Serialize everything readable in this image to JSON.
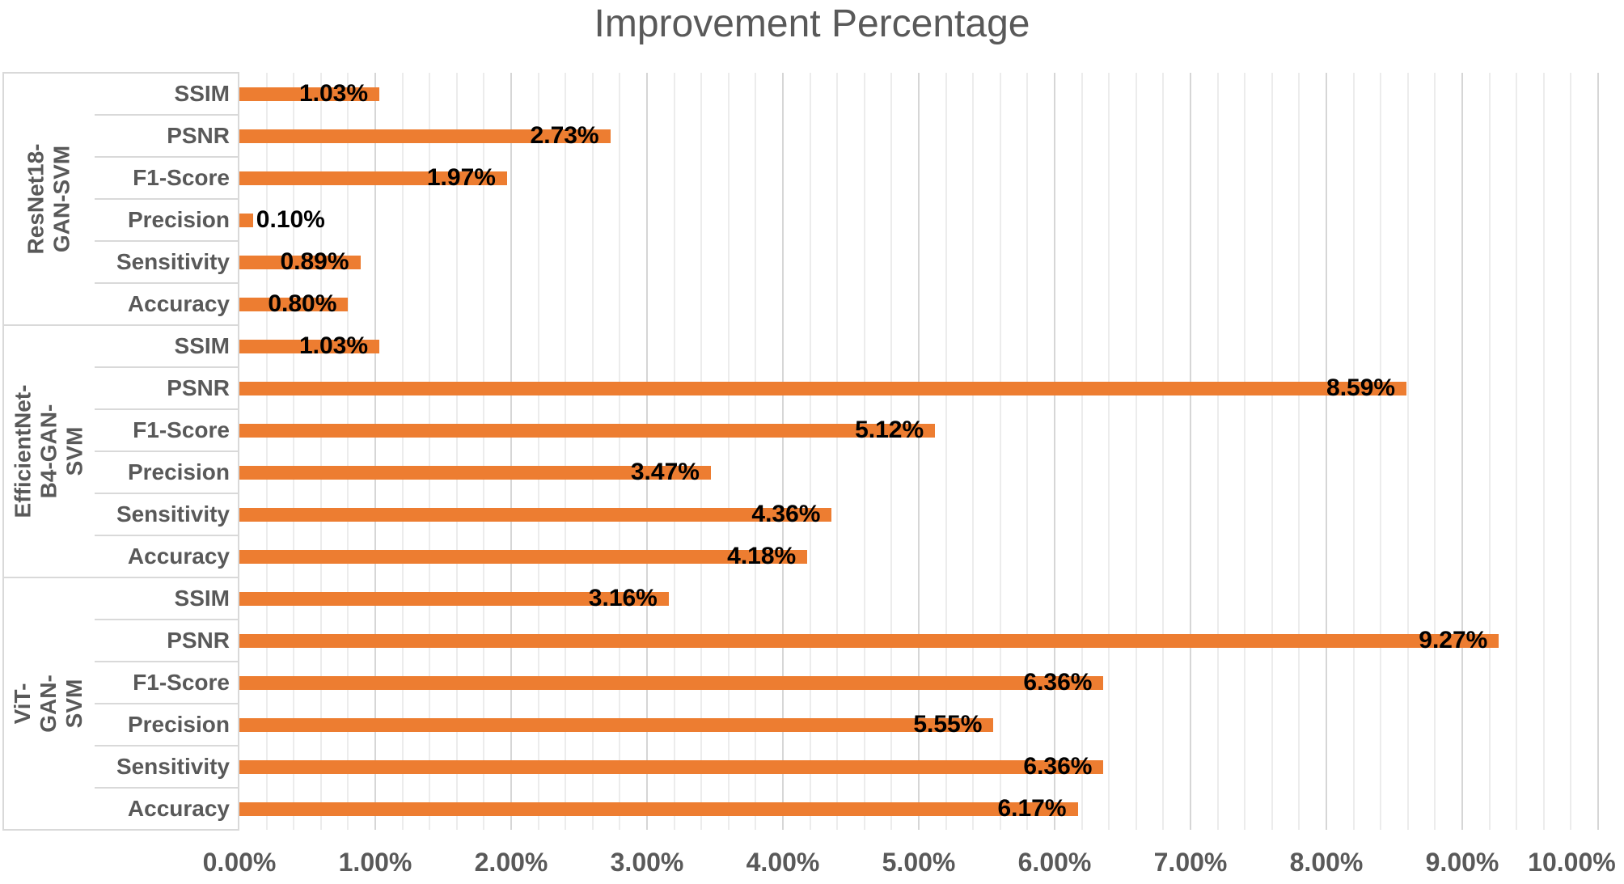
{
  "title": "Improvement Percentage",
  "colors": {
    "bar": "#ED7D31",
    "title_text": "#595959",
    "axis_text": "#595959",
    "category_text": "#595959",
    "value_label_text": "#000000",
    "grid_major": "#D6D6D6",
    "grid_minor": "#ECECEC",
    "label_area_border": "#D9D9D9"
  },
  "chart_data": {
    "type": "bar",
    "orientation": "horizontal",
    "title": "Improvement Percentage",
    "xlabel": "",
    "ylabel": "",
    "x_axis": {
      "min": 0,
      "max": 10,
      "major_step": 1,
      "minor_step": 0.2,
      "unit": "%",
      "tick_labels": [
        "0.00%",
        "1.00%",
        "2.00%",
        "3.00%",
        "4.00%",
        "5.00%",
        "6.00%",
        "7.00%",
        "8.00%",
        "9.00%",
        "10.00%"
      ],
      "grid": "major-and-minor"
    },
    "legend": "none",
    "groups": [
      {
        "name": "ResNet18-GAN-SVM",
        "display_lines": [
          "ResNet18-GAN-SVM"
        ],
        "metrics": [
          {
            "label": "SSIM",
            "value": 1.03,
            "display": "1.03%"
          },
          {
            "label": "PSNR",
            "value": 2.73,
            "display": "2.73%"
          },
          {
            "label": "F1-Score",
            "value": 1.97,
            "display": "1.97%"
          },
          {
            "label": "Precision",
            "value": 0.1,
            "display": "0.10%"
          },
          {
            "label": "Sensitivity",
            "value": 0.89,
            "display": "0.89%"
          },
          {
            "label": "Accuracy",
            "value": 0.8,
            "display": "0.80%"
          }
        ]
      },
      {
        "name": "EfficientNet-B4-GAN-SVM",
        "display_lines": [
          "EfficientNet-B4-GAN-",
          "SVM"
        ],
        "metrics": [
          {
            "label": "SSIM",
            "value": 1.03,
            "display": "1.03%"
          },
          {
            "label": "PSNR",
            "value": 8.59,
            "display": "8.59%"
          },
          {
            "label": "F1-Score",
            "value": 5.12,
            "display": "5.12%"
          },
          {
            "label": "Precision",
            "value": 3.47,
            "display": "3.47%"
          },
          {
            "label": "Sensitivity",
            "value": 4.36,
            "display": "4.36%"
          },
          {
            "label": "Accuracy",
            "value": 4.18,
            "display": "4.18%"
          }
        ]
      },
      {
        "name": "ViT-GAN-SVM",
        "display_lines": [
          "ViT-GAN-SVM"
        ],
        "metrics": [
          {
            "label": "SSIM",
            "value": 3.16,
            "display": "3.16%"
          },
          {
            "label": "PSNR",
            "value": 9.27,
            "display": "9.27%"
          },
          {
            "label": "F1-Score",
            "value": 6.36,
            "display": "6.36%"
          },
          {
            "label": "Precision",
            "value": 5.55,
            "display": "5.55%"
          },
          {
            "label": "Sensitivity",
            "value": 6.36,
            "display": "6.36%"
          },
          {
            "label": "Accuracy",
            "value": 6.17,
            "display": "6.17%"
          }
        ]
      }
    ]
  }
}
